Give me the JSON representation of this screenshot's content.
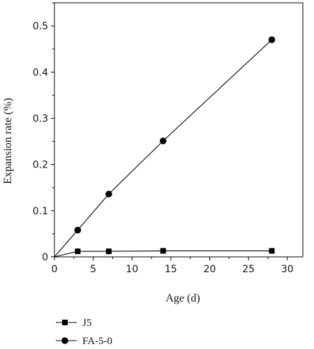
{
  "chart_data": {
    "type": "line",
    "xlabel": "Age (d)",
    "ylabel": "Expansion rate (%)",
    "xlim": [
      0,
      32
    ],
    "ylim": [
      0,
      0.55
    ],
    "xticks": [
      0,
      5,
      10,
      15,
      20,
      25,
      30
    ],
    "yticks": [
      0,
      0.1,
      0.2,
      0.3,
      0.4,
      0.5
    ],
    "xtick_labels": [
      "0",
      "5",
      "10",
      "15",
      "20",
      "25",
      "30"
    ],
    "ytick_labels": [
      "0",
      "0.1",
      "0.2",
      "0.3",
      "0.4",
      "0.5"
    ],
    "grid": false,
    "legend_position": "bottom-left, below plot",
    "series": [
      {
        "name": "J5",
        "marker": "square",
        "color": "#000000",
        "x": [
          0,
          3,
          7,
          14,
          28
        ],
        "y": [
          0,
          0.012,
          0.012,
          0.013,
          0.013
        ]
      },
      {
        "name": "FA-5-0",
        "marker": "circle",
        "color": "#000000",
        "x": [
          0,
          3,
          7,
          14,
          28
        ],
        "y": [
          0,
          0.058,
          0.136,
          0.251,
          0.47
        ]
      }
    ]
  }
}
